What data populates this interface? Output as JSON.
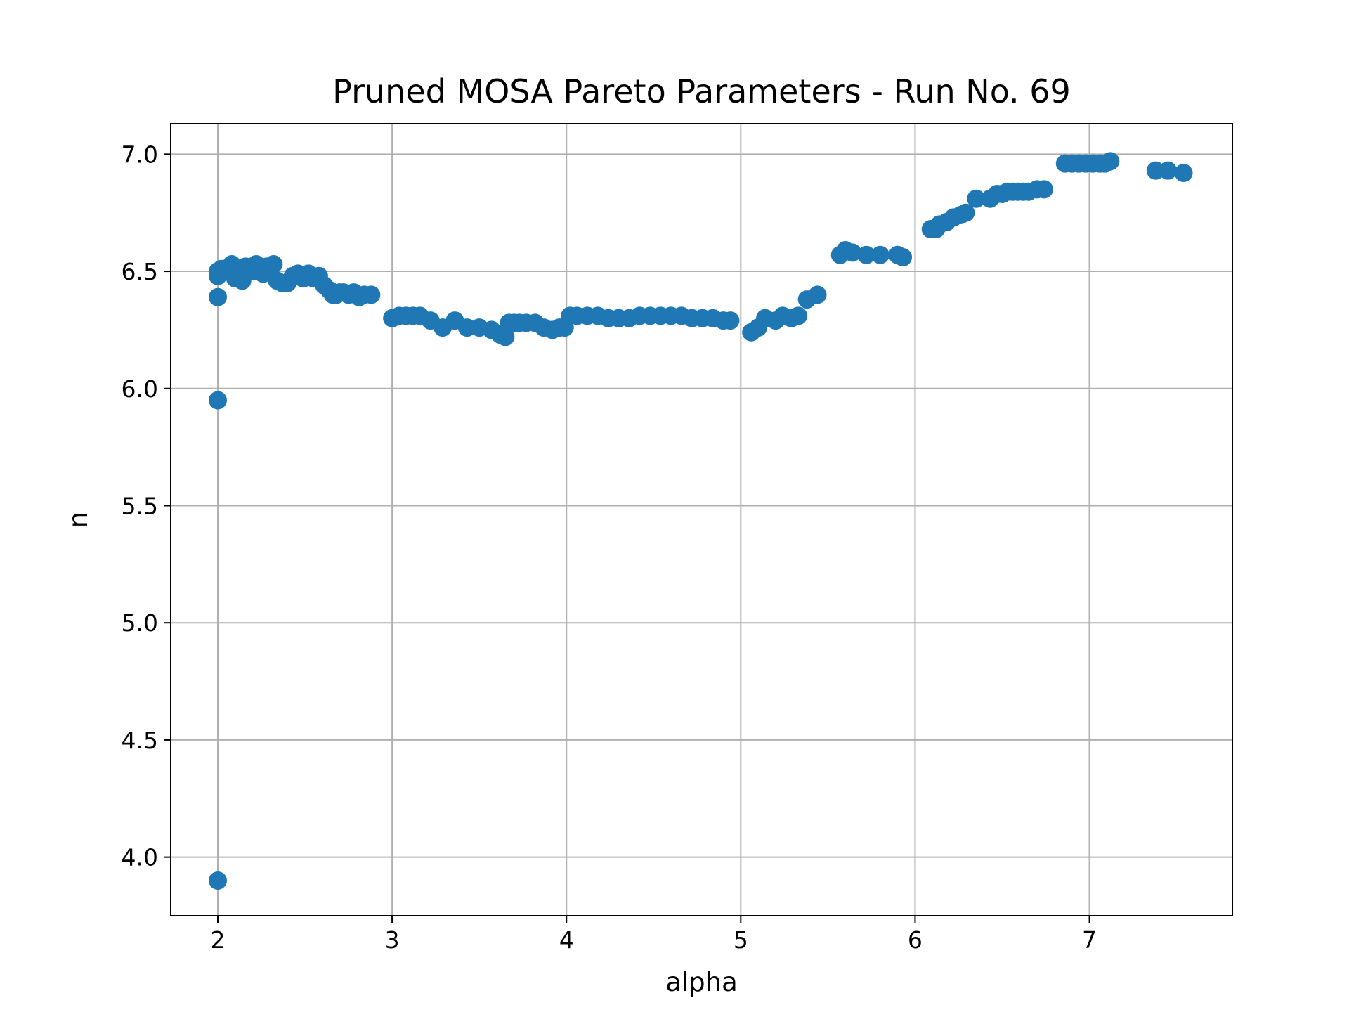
{
  "chart_data": {
    "type": "scatter",
    "title": "Pruned MOSA Pareto Parameters - Run No. 69",
    "xlabel": "alpha",
    "ylabel": "n",
    "xlim": [
      1.73,
      7.82
    ],
    "ylim": [
      3.75,
      7.13
    ],
    "xticks": [
      "2",
      "3",
      "4",
      "5",
      "6",
      "7"
    ],
    "yticks": [
      "4.0",
      "4.5",
      "5.0",
      "5.5",
      "6.0",
      "6.5",
      "7.0"
    ],
    "grid": true,
    "marker_color": "#1f77b4",
    "series": [
      {
        "x": [
          2.0,
          2.0,
          2.0,
          2.0,
          2.0,
          2.02,
          2.05,
          2.07,
          2.08,
          2.1,
          2.12,
          2.14,
          2.16,
          2.18,
          2.2,
          2.22,
          2.24,
          2.26,
          2.28,
          2.3,
          2.32,
          2.34,
          2.37,
          2.4,
          2.43,
          2.46,
          2.49,
          2.52,
          2.55,
          2.58,
          2.61,
          2.64,
          2.66,
          2.68,
          2.7,
          2.72,
          2.75,
          2.78,
          2.81,
          2.84,
          2.88,
          3.0,
          3.04,
          3.08,
          3.12,
          3.16,
          3.22,
          3.29,
          3.36,
          3.43,
          3.5,
          3.57,
          3.62,
          3.65,
          3.67,
          3.7,
          3.73,
          3.77,
          3.82,
          3.87,
          3.92,
          3.96,
          3.99,
          4.02,
          4.06,
          4.12,
          4.18,
          4.24,
          4.3,
          4.36,
          4.42,
          4.48,
          4.54,
          4.6,
          4.66,
          4.72,
          4.78,
          4.84,
          4.9,
          4.94,
          5.06,
          5.1,
          5.14,
          5.2,
          5.24,
          5.29,
          5.33,
          5.38,
          5.44,
          5.57,
          5.6,
          5.64,
          5.72,
          5.8,
          5.9,
          5.93,
          6.09,
          6.12,
          6.14,
          6.18,
          6.22,
          6.26,
          6.29,
          6.35,
          6.43,
          6.47,
          6.5,
          6.53,
          6.56,
          6.59,
          6.62,
          6.65,
          6.7,
          6.74,
          6.86,
          6.9,
          6.94,
          6.98,
          7.02,
          7.06,
          7.09,
          7.12,
          7.38,
          7.45,
          7.54
        ],
        "y": [
          3.9,
          5.95,
          6.39,
          6.48,
          6.5,
          6.51,
          6.5,
          6.52,
          6.53,
          6.47,
          6.5,
          6.46,
          6.52,
          6.51,
          6.5,
          6.53,
          6.51,
          6.49,
          6.52,
          6.5,
          6.53,
          6.46,
          6.45,
          6.45,
          6.48,
          6.49,
          6.47,
          6.49,
          6.47,
          6.48,
          6.44,
          6.42,
          6.4,
          6.4,
          6.41,
          6.41,
          6.4,
          6.41,
          6.39,
          6.4,
          6.4,
          6.3,
          6.31,
          6.31,
          6.31,
          6.31,
          6.29,
          6.26,
          6.29,
          6.26,
          6.26,
          6.25,
          6.23,
          6.22,
          6.28,
          6.28,
          6.28,
          6.28,
          6.28,
          6.26,
          6.25,
          6.26,
          6.26,
          6.31,
          6.31,
          6.31,
          6.31,
          6.3,
          6.3,
          6.3,
          6.31,
          6.31,
          6.31,
          6.31,
          6.31,
          6.3,
          6.3,
          6.3,
          6.29,
          6.29,
          6.24,
          6.26,
          6.3,
          6.29,
          6.31,
          6.3,
          6.31,
          6.38,
          6.4,
          6.57,
          6.59,
          6.58,
          6.57,
          6.57,
          6.57,
          6.56,
          6.68,
          6.68,
          6.7,
          6.71,
          6.73,
          6.74,
          6.75,
          6.81,
          6.81,
          6.83,
          6.83,
          6.84,
          6.84,
          6.84,
          6.84,
          6.84,
          6.85,
          6.85,
          6.96,
          6.96,
          6.96,
          6.96,
          6.96,
          6.96,
          6.96,
          6.97,
          6.93,
          6.93,
          6.92
        ]
      }
    ]
  }
}
